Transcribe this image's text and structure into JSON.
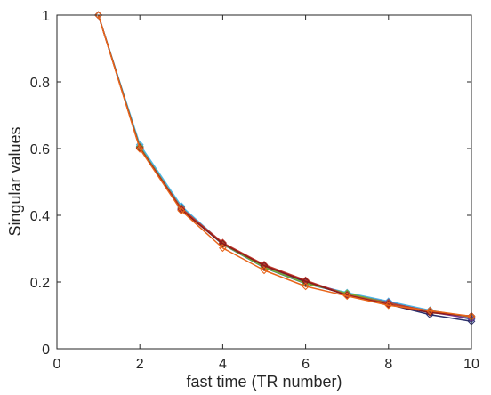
{
  "chart_data": {
    "type": "line",
    "title": "",
    "xlabel": "fast time (TR number)",
    "ylabel": "Singular values",
    "xlim": [
      0,
      10
    ],
    "ylim": [
      0,
      1
    ],
    "x_ticks": [
      0,
      2,
      4,
      6,
      8,
      10
    ],
    "y_ticks": [
      0,
      0.2,
      0.4,
      0.6,
      0.8,
      1
    ],
    "x_tick_labels": [
      "0",
      "2",
      "4",
      "6",
      "8",
      "10"
    ],
    "y_tick_labels": [
      "0",
      "0.2",
      "0.4",
      "0.6",
      "0.8",
      "1"
    ],
    "grid": false,
    "marker": "diamond",
    "x": [
      1,
      2,
      3,
      4,
      5,
      6,
      7,
      8,
      9,
      10
    ],
    "series": [
      {
        "color": "#1f5fa8",
        "values": [
          1.0,
          0.607,
          0.425,
          0.313,
          0.243,
          0.195,
          0.165,
          0.138,
          0.115,
          0.088
        ]
      },
      {
        "color": "#4db3e6",
        "values": [
          1.0,
          0.612,
          0.428,
          0.316,
          0.245,
          0.198,
          0.168,
          0.142,
          0.115,
          0.094
        ]
      },
      {
        "color": "#2b2f6b",
        "values": [
          1.0,
          0.603,
          0.418,
          0.313,
          0.25,
          0.2,
          0.161,
          0.133,
          0.102,
          0.082
        ]
      },
      {
        "color": "#7e2f8e",
        "values": [
          1.0,
          0.604,
          0.42,
          0.317,
          0.247,
          0.203,
          0.164,
          0.139,
          0.11,
          0.09
        ]
      },
      {
        "color": "#77ac30",
        "values": [
          1.0,
          0.605,
          0.422,
          0.314,
          0.244,
          0.196,
          0.166,
          0.137,
          0.112,
          0.095
        ]
      },
      {
        "color": "#c0392b",
        "values": [
          1.0,
          0.602,
          0.421,
          0.318,
          0.252,
          0.205,
          0.161,
          0.136,
          0.113,
          0.096
        ]
      },
      {
        "color": "#8b1a1a",
        "values": [
          1.0,
          0.601,
          0.416,
          0.315,
          0.249,
          0.202,
          0.16,
          0.132,
          0.108,
          0.098
        ]
      },
      {
        "color": "#e8651a",
        "values": [
          1.0,
          0.599,
          0.414,
          0.302,
          0.235,
          0.187,
          0.158,
          0.13,
          0.114,
          0.097
        ]
      }
    ]
  }
}
